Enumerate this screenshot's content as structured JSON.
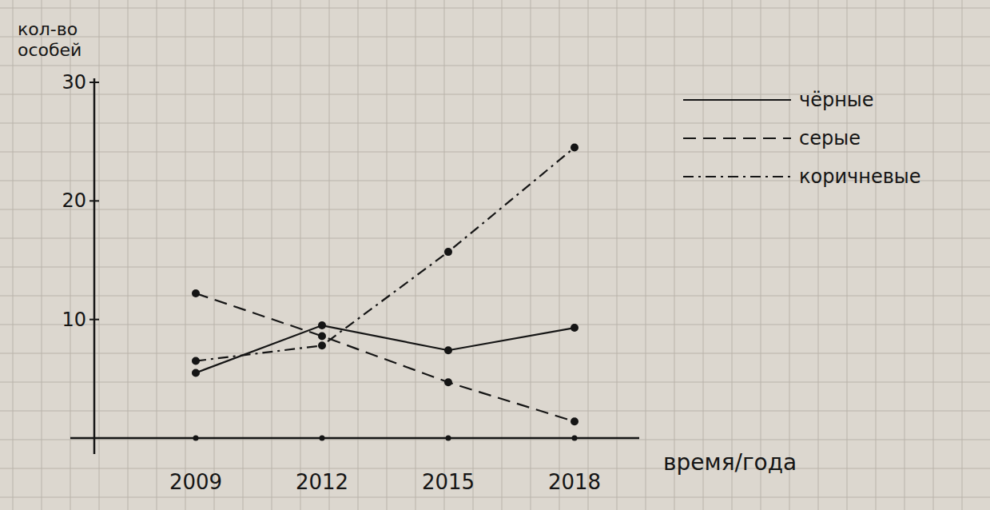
{
  "chart_data": {
    "type": "line",
    "x_label": "время/года",
    "y_label": "кол-во особей",
    "categories": [
      "2009",
      "2012",
      "2015",
      "2018"
    ],
    "series": [
      {
        "name": "чёрные",
        "color": "#151515",
        "line_style": "solid",
        "marker": "circle",
        "values": [
          5.5,
          9.5,
          7.4,
          9.3
        ]
      },
      {
        "name": "серые",
        "color": "#151515",
        "line_style": "dashed",
        "marker": "circle",
        "values": [
          12.2,
          8.6,
          4.7,
          1.4
        ]
      },
      {
        "name": "коричневые",
        "color": "#151515",
        "line_style": "dashdot",
        "marker": "circle",
        "values": [
          6.5,
          7.8,
          15.7,
          24.5
        ]
      }
    ],
    "ylim": [
      0,
      30
    ],
    "yticks": [
      10,
      20,
      30
    ],
    "grid": false,
    "legend": "top-right"
  }
}
